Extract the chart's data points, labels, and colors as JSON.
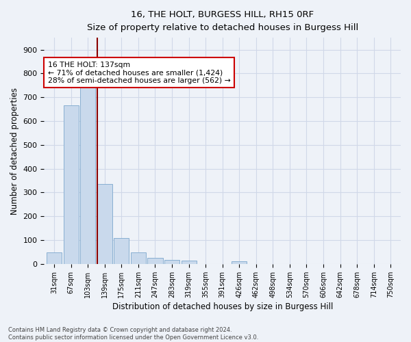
{
  "title": "16, THE HOLT, BURGESS HILL, RH15 0RF",
  "subtitle": "Size of property relative to detached houses in Burgess Hill",
  "xlabel": "Distribution of detached houses by size in Burgess Hill",
  "ylabel": "Number of detached properties",
  "bar_labels": [
    "31sqm",
    "67sqm",
    "103sqm",
    "139sqm",
    "175sqm",
    "211sqm",
    "247sqm",
    "283sqm",
    "319sqm",
    "355sqm",
    "391sqm",
    "426sqm",
    "462sqm",
    "498sqm",
    "534sqm",
    "570sqm",
    "606sqm",
    "642sqm",
    "678sqm",
    "714sqm",
    "750sqm"
  ],
  "bar_heights": [
    50,
    665,
    750,
    335,
    108,
    50,
    25,
    18,
    13,
    0,
    0,
    10,
    0,
    0,
    0,
    0,
    0,
    0,
    0,
    0,
    0
  ],
  "bar_color": "#c9d9ec",
  "bar_edge_color": "#7ba6cc",
  "grid_color": "#d0d8e8",
  "background_color": "#eef2f8",
  "vline_x": 2.57,
  "vline_color": "#8b0000",
  "annotation_text": "16 THE HOLT: 137sqm\n← 71% of detached houses are smaller (1,424)\n28% of semi-detached houses are larger (562) →",
  "annotation_box_color": "#ffffff",
  "annotation_border_color": "#cc0000",
  "footer_text": "Contains HM Land Registry data © Crown copyright and database right 2024.\nContains public sector information licensed under the Open Government Licence v3.0.",
  "ylim": [
    0,
    950
  ],
  "yticks": [
    0,
    100,
    200,
    300,
    400,
    500,
    600,
    700,
    800,
    900
  ]
}
